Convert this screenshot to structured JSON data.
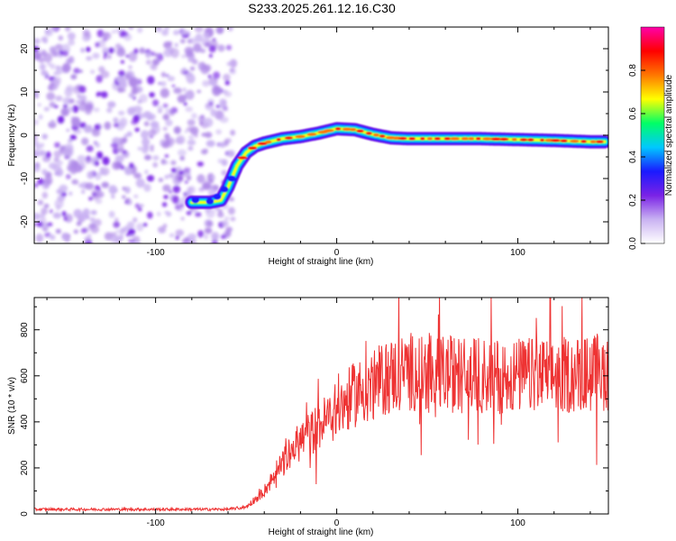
{
  "title": "S233.2025.261.12.16.C30",
  "colors": {
    "snr_line": "#ee3333",
    "axis": "#000000",
    "cmap": [
      "#ffffff",
      "#c9b2f2",
      "#7a22e6",
      "#1a1aff",
      "#00c8ff",
      "#00ff66",
      "#ffff00",
      "#ff7700",
      "#ff0000",
      "#ff00aa"
    ]
  },
  "chart_data": [
    {
      "type": "heatmap",
      "name": "spectrogram",
      "xlabel": "Height of straight line (km)",
      "ylabel": "Frequency (Hz)",
      "xlim": [
        -167,
        150
      ],
      "ylim": [
        -25,
        25
      ],
      "xticks": [
        -100,
        0,
        100
      ],
      "yticks": [
        -20,
        -10,
        0,
        10,
        20
      ],
      "xtick_labels": [
        "-100",
        "0",
        "100"
      ],
      "ytick_labels": [
        "-20",
        "-10",
        "0",
        "10",
        "20"
      ],
      "noise_region_x": [
        -167,
        -55
      ],
      "ridge": {
        "x": [
          -80,
          -70,
          -64,
          -60,
          -55,
          -50,
          -45,
          -40,
          -30,
          -20,
          -10,
          0,
          10,
          20,
          30,
          40,
          60,
          80,
          100,
          120,
          140,
          148
        ],
        "y": [
          -15.5,
          -15.5,
          -15,
          -12,
          -7,
          -4,
          -2.5,
          -1.8,
          -0.8,
          -0.3,
          0.5,
          1.5,
          1.3,
          0.2,
          -0.6,
          -0.8,
          -0.8,
          -0.8,
          -1.0,
          -1.2,
          -1.5,
          -1.5
        ]
      },
      "colorbar": {
        "label": "Normalized spectral amplitude",
        "min": 0.0,
        "max": 1.0,
        "ticks": [
          0.0,
          0.2,
          0.4,
          0.6,
          0.8
        ],
        "tick_labels": [
          "0.0",
          "0.2",
          "0.4",
          "0.6",
          "0.8"
        ]
      }
    },
    {
      "type": "line",
      "name": "snr",
      "xlabel": "Height of straight line (km)",
      "ylabel": "SNR (10 * v/v)",
      "xlim": [
        -167,
        150
      ],
      "ylim": [
        0,
        940
      ],
      "xticks": [
        -100,
        0,
        100
      ],
      "yticks": [
        0,
        200,
        400,
        600,
        800
      ],
      "xtick_labels": [
        "-100",
        "0",
        "100"
      ],
      "ytick_labels": [
        "0",
        "200",
        "400",
        "600",
        "800"
      ],
      "envelope": {
        "x": [
          -167,
          -60,
          -50,
          -40,
          -30,
          -20,
          -10,
          0,
          10,
          20,
          30,
          40,
          60,
          80,
          100,
          120,
          140,
          150
        ],
        "y": [
          20,
          20,
          30,
          100,
          220,
          320,
          380,
          450,
          520,
          560,
          600,
          620,
          610,
          600,
          600,
          600,
          610,
          620
        ]
      }
    }
  ]
}
